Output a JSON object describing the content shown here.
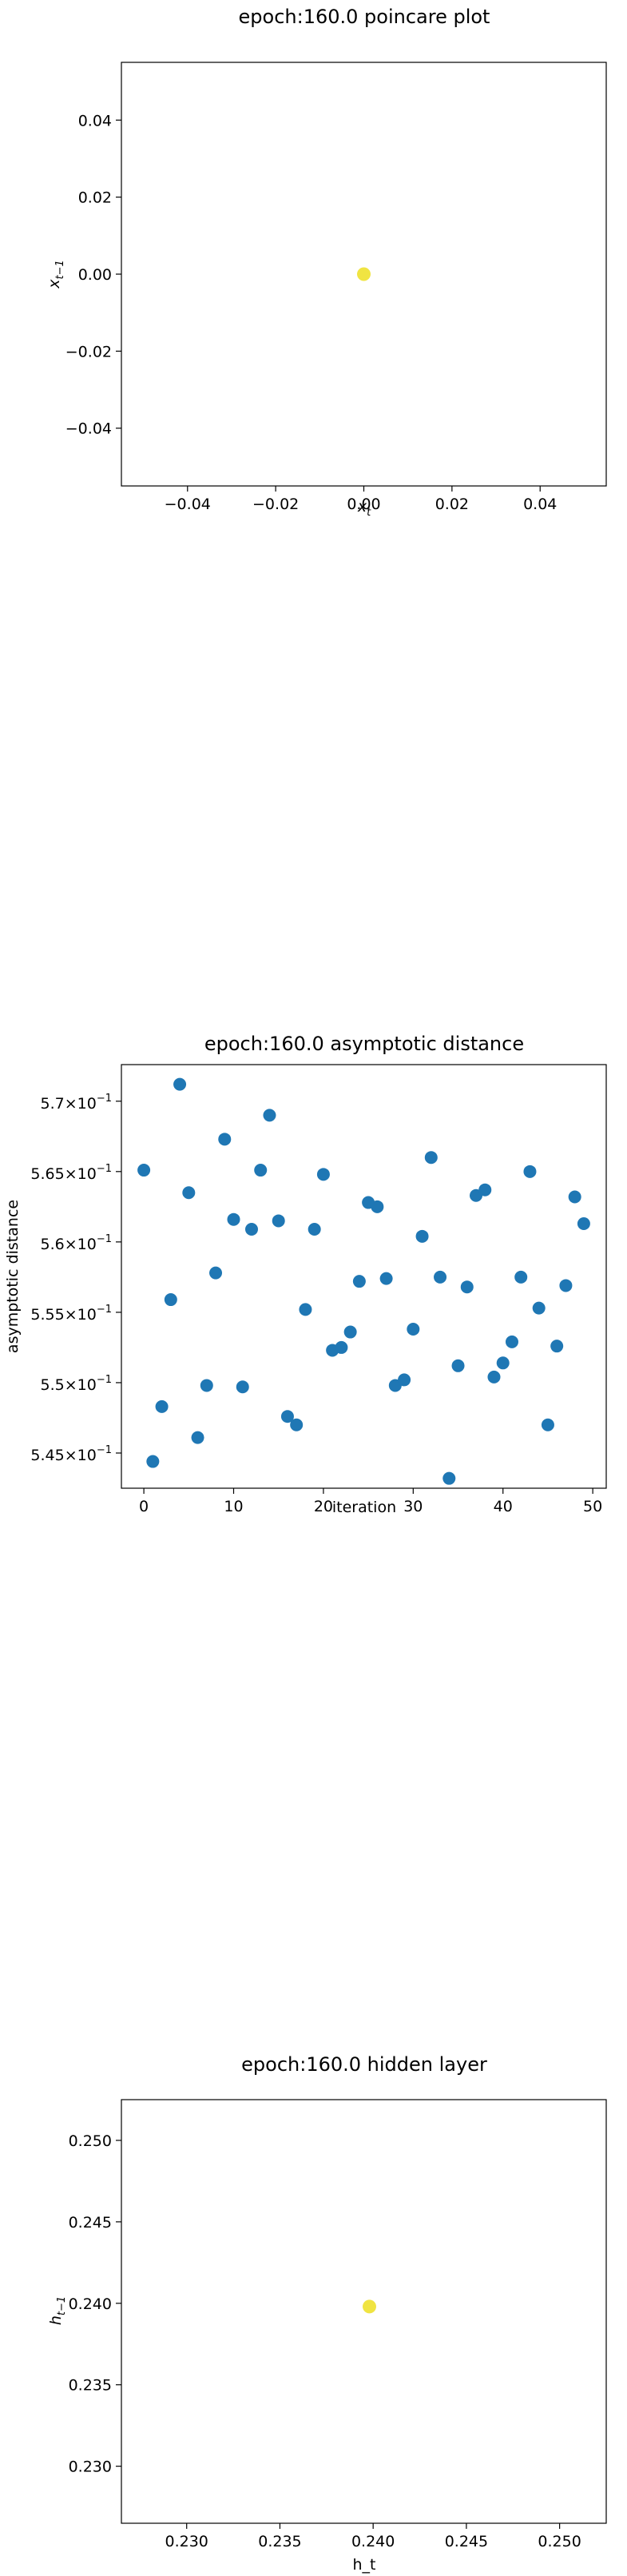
{
  "chart_data": [
    {
      "type": "scatter",
      "title": "epoch:160.0 poincare plot",
      "xlabel": "x_t",
      "ylabel": "x_{t-1}",
      "xlim": [
        -0.055,
        0.055
      ],
      "ylim": [
        -0.055,
        0.055
      ],
      "xticks": [
        -0.04,
        -0.02,
        0.0,
        0.02,
        0.04
      ],
      "xtick_labels": [
        "−0.04",
        "−0.02",
        "0.00",
        "0.02",
        "0.04"
      ],
      "yticks": [
        -0.04,
        -0.02,
        0.0,
        0.02,
        0.04
      ],
      "ytick_labels": [
        "−0.04",
        "−0.02",
        "0.00",
        "0.02",
        "0.04"
      ],
      "grid": false,
      "point_color": "#f0e442",
      "points": [
        {
          "x": 0.0,
          "y": 0.0
        }
      ]
    },
    {
      "type": "scatter",
      "title": "epoch:160.0 asymptotic distance",
      "xlabel": "iteration",
      "ylabel": "asymptotic distance",
      "xlim": [
        -2.5,
        51.5
      ],
      "ylim": [
        0.5425,
        0.5726
      ],
      "xticks": [
        0,
        10,
        20,
        30,
        40,
        50
      ],
      "xtick_labels": [
        "0",
        "10",
        "20",
        "30",
        "40",
        "50"
      ],
      "yticks": [
        0.545,
        0.55,
        0.555,
        0.56,
        0.565,
        0.57
      ],
      "ytick_mantissas": [
        "5.45",
        "5.5",
        "5.55",
        "5.6",
        "5.65",
        "5.7"
      ],
      "ytick_base": "10",
      "ytick_exponent": "−1",
      "ytick_times": "×",
      "grid": false,
      "point_color": "#1f77b4",
      "x": [
        0,
        1,
        2,
        3,
        4,
        5,
        6,
        7,
        8,
        9,
        10,
        11,
        12,
        13,
        14,
        15,
        16,
        17,
        18,
        19,
        20,
        21,
        22,
        23,
        24,
        25,
        26,
        27,
        28,
        29,
        30,
        31,
        32,
        33,
        34,
        35,
        36,
        37,
        38,
        39,
        40,
        41,
        42,
        43,
        44,
        45,
        46,
        47,
        48,
        49
      ],
      "y": [
        0.5651,
        0.5444,
        0.5483,
        0.5559,
        0.5712,
        0.5635,
        0.5461,
        0.5498,
        0.5578,
        0.5673,
        0.5616,
        0.5497,
        0.5609,
        0.5651,
        0.569,
        0.5615,
        0.5476,
        0.547,
        0.5552,
        0.5609,
        0.5648,
        0.5523,
        0.5525,
        0.5536,
        0.5572,
        0.5628,
        0.5625,
        0.5574,
        0.5498,
        0.5502,
        0.5538,
        0.5604,
        0.566,
        0.5575,
        0.5432,
        0.5512,
        0.5568,
        0.5633,
        0.5637,
        0.5504,
        0.5514,
        0.5529,
        0.5575,
        0.565,
        0.5553,
        0.547,
        0.5526,
        0.5569,
        0.5632,
        0.5613
      ]
    },
    {
      "type": "scatter",
      "title": "epoch:160.0 hidden layer",
      "xlabel": "h_t",
      "ylabel": "h_{t-1}",
      "xlim": [
        0.2265,
        0.2525
      ],
      "ylim": [
        0.2265,
        0.2525
      ],
      "xticks": [
        0.23,
        0.235,
        0.24,
        0.245,
        0.25
      ],
      "xtick_labels": [
        "0.230",
        "0.235",
        "0.240",
        "0.245",
        "0.250"
      ],
      "yticks": [
        0.23,
        0.235,
        0.24,
        0.245,
        0.25
      ],
      "ytick_labels": [
        "0.230",
        "0.235",
        "0.240",
        "0.245",
        "0.250"
      ],
      "grid": false,
      "point_color": "#f0e442",
      "points": [
        {
          "x": 0.2398,
          "y": 0.2398
        }
      ]
    }
  ]
}
